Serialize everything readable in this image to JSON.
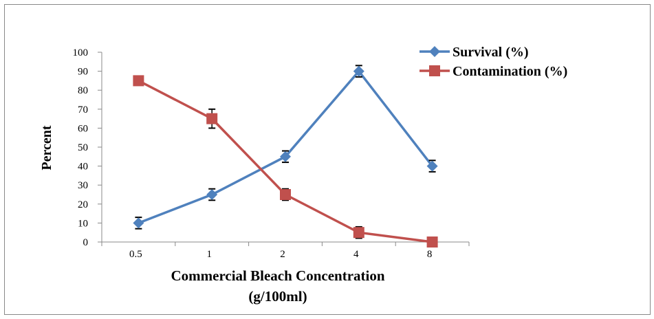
{
  "chart_data": {
    "type": "line",
    "title": "",
    "xlabel": "Commercial Bleach Concentration",
    "xlabel_line2": "(g/100ml)",
    "ylabel": "Percent",
    "categories": [
      "0.5",
      "1",
      "2",
      "4",
      "8"
    ],
    "ylim": [
      0,
      100
    ],
    "yticks": [
      0,
      10,
      20,
      30,
      40,
      50,
      60,
      70,
      80,
      90,
      100
    ],
    "grid": false,
    "legend_position": "top-right",
    "series": [
      {
        "name": "Survival (%)",
        "values": [
          10,
          25,
          45,
          90,
          40
        ],
        "errors": [
          3,
          3,
          3,
          3,
          3
        ],
        "color": "#4F81BD",
        "marker": "diamond"
      },
      {
        "name": "Contamination (%)",
        "values": [
          85,
          65,
          25,
          5,
          0
        ],
        "errors": [
          2,
          5,
          3,
          3,
          0
        ],
        "color": "#C0504D",
        "marker": "square"
      }
    ]
  }
}
